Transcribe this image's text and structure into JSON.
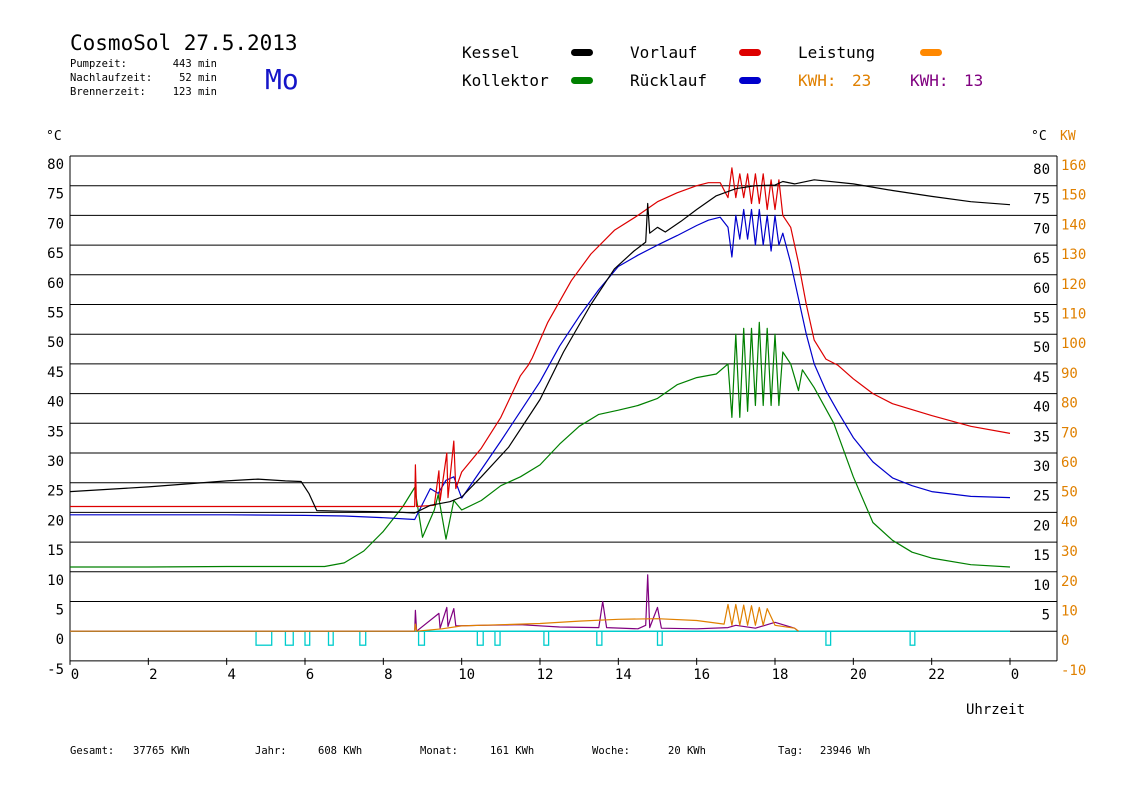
{
  "header": {
    "title": "CosmoSol 27.5.2013",
    "day": "Mo",
    "stats": [
      {
        "label": "Pumpzeit:",
        "value": "443 min"
      },
      {
        "label": "Nachlaufzeit:",
        "value": "52 min"
      },
      {
        "label": "Brennerzeit:",
        "value": "123 min"
      }
    ]
  },
  "legend": {
    "items": [
      {
        "name": "Kessel",
        "color": "#000000"
      },
      {
        "name": "Vorlauf",
        "color": "#dd0000"
      },
      {
        "name": "Leistung",
        "color": "#ff8800"
      },
      {
        "name": "Kollektor",
        "color": "#008000"
      },
      {
        "name": "Rücklauf",
        "color": "#0000cc"
      }
    ],
    "kwh": [
      {
        "label": "KWH:",
        "value": "23",
        "color": "#e08000"
      },
      {
        "label": "KWH:",
        "value": "13",
        "color": "#800080"
      }
    ]
  },
  "footer": [
    {
      "label": "Gesamt:",
      "value": "37765 KWh"
    },
    {
      "label": "Jahr:",
      "value": "608 KWh"
    },
    {
      "label": "Monat:",
      "value": "161 KWh"
    },
    {
      "label": "Woche:",
      "value": "20 KWh"
    },
    {
      "label": "Tag:",
      "value": "23946 Wh"
    }
  ],
  "colors": {
    "grid": "#000000",
    "power_axis": "#e08000",
    "pump": "#00cccc"
  },
  "chart_data": {
    "type": "line",
    "xlabel": "Uhrzeit",
    "ylabel_left": "°C",
    "ylabel_right": [
      "°C",
      "KW"
    ],
    "xlim": [
      0,
      24
    ],
    "ylim_left": [
      -5,
      80
    ],
    "ylim_right_kw": [
      -10,
      160
    ],
    "x_ticks": [
      "0",
      "2",
      "4",
      "6",
      "8",
      "10",
      "12",
      "14",
      "16",
      "18",
      "20",
      "22",
      "0"
    ],
    "y_ticks_left": [
      "80",
      "75",
      "70",
      "65",
      "60",
      "55",
      "50",
      "45",
      "40",
      "35",
      "30",
      "25",
      "20",
      "15",
      "10",
      "5",
      "0",
      "-5"
    ],
    "y_ticks_right_c": [
      "80",
      "75",
      "70",
      "65",
      "60",
      "55",
      "50",
      "45",
      "40",
      "35",
      "30",
      "25",
      "20",
      "15",
      "10",
      "5"
    ],
    "y_ticks_right_kw": [
      "160",
      "150",
      "140",
      "130",
      "120",
      "110",
      "100",
      "90",
      "80",
      "70",
      "60",
      "50",
      "40",
      "30",
      "20",
      "10",
      "0",
      "-10"
    ],
    "grid": true,
    "series": [
      {
        "name": "Kessel",
        "color": "#000000",
        "points": [
          [
            0,
            23.5
          ],
          [
            2,
            24.3
          ],
          [
            4,
            25.3
          ],
          [
            4.8,
            25.6
          ],
          [
            5.5,
            25.3
          ],
          [
            5.9,
            25.2
          ],
          [
            6.1,
            23.2
          ],
          [
            6.3,
            20.3
          ],
          [
            7,
            20.2
          ],
          [
            8.2,
            20.1
          ],
          [
            8.8,
            19.9
          ],
          [
            9.2,
            21.2
          ],
          [
            9.7,
            21.8
          ],
          [
            10,
            22.6
          ],
          [
            10.5,
            26
          ],
          [
            11.2,
            31
          ],
          [
            12,
            39
          ],
          [
            12.6,
            47
          ],
          [
            13.3,
            55
          ],
          [
            13.9,
            61
          ],
          [
            14.4,
            64
          ],
          [
            14.7,
            65.5
          ],
          [
            14.75,
            72
          ],
          [
            14.8,
            67
          ],
          [
            15,
            68
          ],
          [
            15.2,
            67.2
          ],
          [
            15.6,
            69
          ],
          [
            16,
            71
          ],
          [
            16.5,
            73.3
          ],
          [
            17,
            74.5
          ],
          [
            17.5,
            75
          ],
          [
            18,
            75.1
          ],
          [
            18.2,
            75.7
          ],
          [
            18.5,
            75.3
          ],
          [
            19,
            76
          ],
          [
            20,
            75.3
          ],
          [
            21,
            74.2
          ],
          [
            22,
            73.2
          ],
          [
            23,
            72.3
          ],
          [
            24,
            71.8
          ]
        ]
      },
      {
        "name": "Vorlauf",
        "color": "#dd0000",
        "points": [
          [
            0,
            21
          ],
          [
            4,
            21
          ],
          [
            6,
            21
          ],
          [
            8,
            21
          ],
          [
            8.8,
            21
          ],
          [
            8.82,
            28
          ],
          [
            8.85,
            21
          ],
          [
            9.3,
            21.2
          ],
          [
            9.42,
            27
          ],
          [
            9.45,
            22
          ],
          [
            9.62,
            30
          ],
          [
            9.65,
            22.5
          ],
          [
            9.8,
            32
          ],
          [
            9.85,
            24
          ],
          [
            10,
            26.8
          ],
          [
            10.5,
            30.8
          ],
          [
            11,
            36
          ],
          [
            11.5,
            43
          ],
          [
            11.7,
            44.8
          ],
          [
            11.8,
            46
          ],
          [
            12.2,
            52
          ],
          [
            12.8,
            59
          ],
          [
            13.3,
            63.5
          ],
          [
            13.9,
            67.5
          ],
          [
            14.5,
            70
          ],
          [
            15,
            72.3
          ],
          [
            15.5,
            73.8
          ],
          [
            16,
            75
          ],
          [
            16.3,
            75.5
          ],
          [
            16.6,
            75.5
          ],
          [
            16.8,
            73
          ],
          [
            16.9,
            78
          ],
          [
            17,
            73
          ],
          [
            17.1,
            77
          ],
          [
            17.2,
            73
          ],
          [
            17.3,
            77
          ],
          [
            17.4,
            72
          ],
          [
            17.5,
            77
          ],
          [
            17.6,
            72
          ],
          [
            17.7,
            77
          ],
          [
            17.8,
            71
          ],
          [
            17.9,
            76
          ],
          [
            18,
            71
          ],
          [
            18.1,
            76
          ],
          [
            18.2,
            70
          ],
          [
            18.4,
            68
          ],
          [
            18.6,
            62
          ],
          [
            18.8,
            55
          ],
          [
            19,
            49
          ],
          [
            19.3,
            45.8
          ],
          [
            19.6,
            44.8
          ],
          [
            20,
            42.5
          ],
          [
            20.5,
            40
          ],
          [
            21,
            38.3
          ],
          [
            22,
            36.3
          ],
          [
            23,
            34.5
          ],
          [
            24,
            33.3
          ]
        ]
      },
      {
        "name": "Rücklauf",
        "color": "#0000cc",
        "points": [
          [
            0,
            19.6
          ],
          [
            4,
            19.6
          ],
          [
            6,
            19.5
          ],
          [
            7,
            19.4
          ],
          [
            8,
            19.1
          ],
          [
            8.8,
            18.8
          ],
          [
            9.2,
            24
          ],
          [
            9.4,
            23.2
          ],
          [
            9.6,
            25.4
          ],
          [
            9.8,
            26
          ],
          [
            10,
            22.4
          ],
          [
            10.5,
            27.2
          ],
          [
            11,
            32
          ],
          [
            11.5,
            37
          ],
          [
            12,
            42
          ],
          [
            12.5,
            48
          ],
          [
            13,
            53
          ],
          [
            13.5,
            57.5
          ],
          [
            14,
            61.4
          ],
          [
            14.5,
            63.3
          ],
          [
            15,
            65
          ],
          [
            15.5,
            66.6
          ],
          [
            16,
            68.3
          ],
          [
            16.3,
            69.2
          ],
          [
            16.6,
            69.7
          ],
          [
            16.8,
            68
          ],
          [
            16.9,
            63
          ],
          [
            17,
            70
          ],
          [
            17.1,
            66
          ],
          [
            17.2,
            71
          ],
          [
            17.3,
            66
          ],
          [
            17.4,
            71
          ],
          [
            17.5,
            65
          ],
          [
            17.6,
            71
          ],
          [
            17.7,
            65
          ],
          [
            17.8,
            70
          ],
          [
            17.9,
            64
          ],
          [
            18,
            70
          ],
          [
            18.1,
            65
          ],
          [
            18.2,
            67
          ],
          [
            18.4,
            62
          ],
          [
            18.6,
            56
          ],
          [
            18.8,
            50
          ],
          [
            19,
            45
          ],
          [
            19.3,
            40.5
          ],
          [
            19.6,
            37
          ],
          [
            20,
            32.6
          ],
          [
            20.5,
            28.5
          ],
          [
            21,
            25.8
          ],
          [
            21.5,
            24.5
          ],
          [
            22,
            23.5
          ],
          [
            23,
            22.7
          ],
          [
            24,
            22.5
          ]
        ]
      },
      {
        "name": "Kollektor",
        "color": "#008000",
        "points": [
          [
            0,
            10.8
          ],
          [
            2,
            10.8
          ],
          [
            4,
            10.9
          ],
          [
            6,
            10.9
          ],
          [
            6.5,
            10.9
          ],
          [
            7,
            11.5
          ],
          [
            7.5,
            13.5
          ],
          [
            8,
            16.8
          ],
          [
            8.5,
            21
          ],
          [
            8.8,
            24.2
          ],
          [
            9,
            15.8
          ],
          [
            9.3,
            20.4
          ],
          [
            9.4,
            23
          ],
          [
            9.6,
            15.5
          ],
          [
            9.8,
            22
          ],
          [
            10,
            20.4
          ],
          [
            10.5,
            22
          ],
          [
            11,
            24.5
          ],
          [
            11.5,
            26
          ],
          [
            12,
            28
          ],
          [
            12.5,
            31.5
          ],
          [
            13,
            34.5
          ],
          [
            13.5,
            36.5
          ],
          [
            14,
            37.2
          ],
          [
            14.5,
            38
          ],
          [
            15,
            39.2
          ],
          [
            15.5,
            41.5
          ],
          [
            16,
            42.7
          ],
          [
            16.5,
            43.3
          ],
          [
            16.8,
            45
          ],
          [
            16.9,
            36
          ],
          [
            17,
            50
          ],
          [
            17.1,
            36
          ],
          [
            17.2,
            51
          ],
          [
            17.3,
            37
          ],
          [
            17.4,
            51
          ],
          [
            17.5,
            38
          ],
          [
            17.6,
            52
          ],
          [
            17.7,
            38
          ],
          [
            17.8,
            51
          ],
          [
            17.9,
            38
          ],
          [
            18,
            50
          ],
          [
            18.1,
            38
          ],
          [
            18.2,
            47
          ],
          [
            18.4,
            45
          ],
          [
            18.6,
            40.5
          ],
          [
            18.7,
            44
          ],
          [
            19,
            41
          ],
          [
            19.5,
            35
          ],
          [
            20,
            26
          ],
          [
            20.5,
            18.3
          ],
          [
            21,
            15.3
          ],
          [
            21.5,
            13.3
          ],
          [
            22,
            12.3
          ],
          [
            23,
            11.2
          ],
          [
            24,
            10.8
          ]
        ]
      },
      {
        "name": "Leistung",
        "color": "#e08000",
        "points": [
          [
            0,
            0
          ],
          [
            8.8,
            0
          ],
          [
            8.82,
            1.2
          ],
          [
            8.85,
            0
          ],
          [
            9.5,
            0.4
          ],
          [
            10,
            0.9
          ],
          [
            11,
            1.1
          ],
          [
            12,
            1.3
          ],
          [
            13,
            1.7
          ],
          [
            14,
            2
          ],
          [
            15,
            2.1
          ],
          [
            16,
            1.8
          ],
          [
            16.7,
            1.2
          ],
          [
            16.8,
            4.5
          ],
          [
            16.9,
            1
          ],
          [
            17,
            4.5
          ],
          [
            17.1,
            1
          ],
          [
            17.2,
            4.4
          ],
          [
            17.3,
            1
          ],
          [
            17.4,
            4.3
          ],
          [
            17.5,
            1
          ],
          [
            17.6,
            4
          ],
          [
            17.7,
            1
          ],
          [
            17.8,
            3.8
          ],
          [
            18,
            1
          ],
          [
            18.5,
            0.5
          ],
          [
            18.6,
            0
          ]
        ]
      },
      {
        "name": "",
        "color": "#800080",
        "points": [
          [
            0,
            0
          ],
          [
            8.8,
            0
          ],
          [
            8.82,
            3.5
          ],
          [
            8.85,
            0
          ],
          [
            9.42,
            3
          ],
          [
            9.45,
            0.5
          ],
          [
            9.62,
            4
          ],
          [
            9.65,
            0.8
          ],
          [
            9.8,
            3.8
          ],
          [
            9.85,
            0.9
          ],
          [
            10.5,
            1
          ],
          [
            11.5,
            1.1
          ],
          [
            12.5,
            0.7
          ],
          [
            13.5,
            0.6
          ],
          [
            13.6,
            5
          ],
          [
            13.7,
            0.6
          ],
          [
            14.5,
            0.4
          ],
          [
            14.7,
            1
          ],
          [
            14.75,
            9.5
          ],
          [
            14.8,
            0.6
          ],
          [
            15,
            4
          ],
          [
            15.1,
            0.5
          ],
          [
            16,
            0.4
          ],
          [
            16.8,
            0.6
          ],
          [
            17,
            1
          ],
          [
            17.5,
            0.5
          ],
          [
            18,
            1.5
          ],
          [
            18.5,
            0.5
          ],
          [
            18.6,
            0
          ]
        ]
      }
    ],
    "pump_pulses": [
      [
        4.75,
        5.15
      ],
      [
        5.5,
        5.7
      ],
      [
        6,
        6.12
      ],
      [
        6.6,
        6.72
      ],
      [
        7.4,
        7.55
      ],
      [
        8.9,
        9.05
      ],
      [
        10.4,
        10.55
      ],
      [
        10.85,
        10.98
      ],
      [
        12.1,
        12.22
      ],
      [
        13.45,
        13.58
      ],
      [
        15.0,
        15.12
      ],
      [
        19.3,
        19.42
      ],
      [
        21.45,
        21.57
      ]
    ]
  }
}
